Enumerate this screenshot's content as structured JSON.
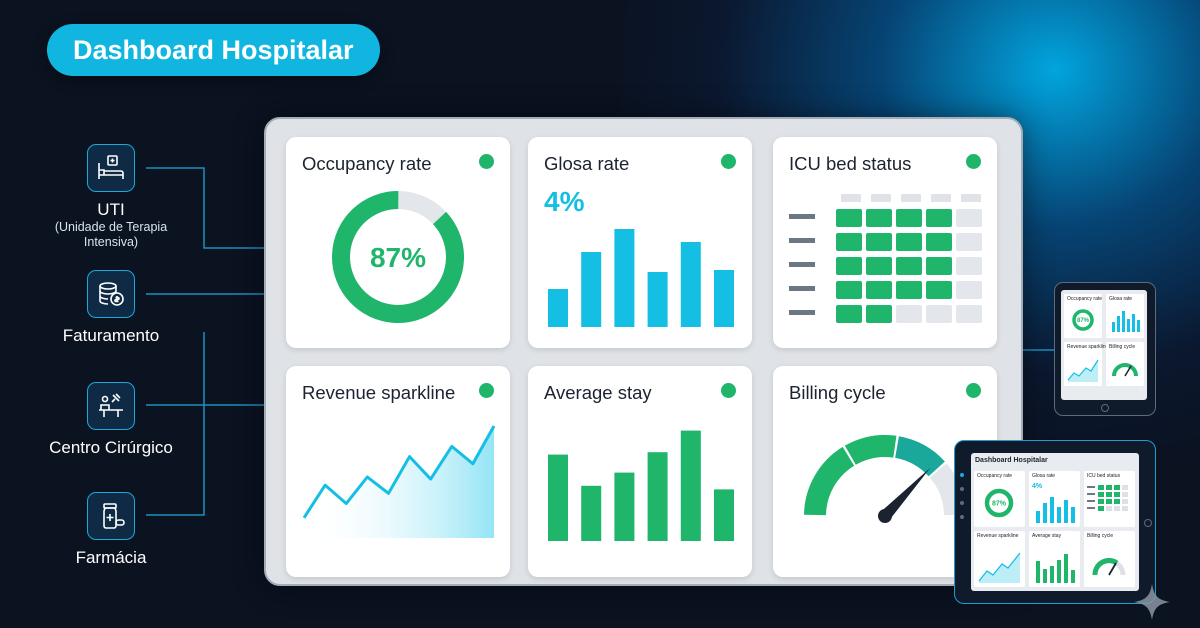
{
  "header": {
    "title": "Dashboard Hospitalar"
  },
  "departments": [
    {
      "name": "UTI",
      "subtitle": "(Unidade de Terapia Intensiva)",
      "icon": "hospital-bed-icon"
    },
    {
      "name": "Faturamento",
      "icon": "coins-icon"
    },
    {
      "name": "Centro Cirúrgico",
      "icon": "surgery-icon"
    },
    {
      "name": "Farmácia",
      "icon": "medicine-bottle-icon"
    }
  ],
  "colors": {
    "green": "#1fb56a",
    "cyan": "#14bfe3",
    "gray": "#e3e6ea",
    "status_ok": "#1fb56a"
  },
  "cards": {
    "occupancy": {
      "title": "Occupancy rate",
      "value": 87,
      "value_label": "87%"
    },
    "glosa": {
      "title": "Glosa rate",
      "value_label": "4%"
    },
    "icu": {
      "title": "ICU bed status"
    },
    "revenue": {
      "title": "Revenue sparkline"
    },
    "stay": {
      "title": "Average stay"
    },
    "billing": {
      "title": "Billing cycle"
    }
  },
  "chart_data": [
    {
      "type": "pie",
      "name": "occupancy",
      "slices": [
        {
          "label": "occupied",
          "value": 87
        },
        {
          "label": "free",
          "value": 13
        }
      ]
    },
    {
      "type": "bar",
      "name": "glosa",
      "values": [
        38,
        75,
        98,
        55,
        85,
        57
      ]
    },
    {
      "type": "heatmap",
      "name": "icu",
      "rows": 5,
      "cols": 5,
      "occupied_per_row": [
        4,
        4,
        4,
        4,
        2
      ]
    },
    {
      "type": "area",
      "name": "revenue",
      "values": [
        10,
        42,
        24,
        50,
        34,
        70,
        48,
        80,
        63,
        100
      ]
    },
    {
      "type": "bar",
      "name": "stay",
      "values": [
        72,
        46,
        57,
        74,
        92,
        43
      ]
    },
    {
      "type": "gauge",
      "name": "billing",
      "value": 0.74,
      "segments": [
        {
          "color": "#1fb56a",
          "to": 0.33
        },
        {
          "color": "#1fb56a",
          "to": 0.55
        },
        {
          "color": "#1aa89a",
          "to": 0.77
        },
        {
          "color": "#e3e6ea",
          "to": 1.0
        }
      ]
    }
  ],
  "mini_dashboard": {
    "title": "Dashboard Hospitalar",
    "labels": [
      "Occupancy rate",
      "Glosa rate",
      "ICU bed status",
      "Revenue sparkline",
      "Average stay",
      "Billing cycle"
    ],
    "occupancy_label": "87%",
    "glosa_label": "4%"
  }
}
